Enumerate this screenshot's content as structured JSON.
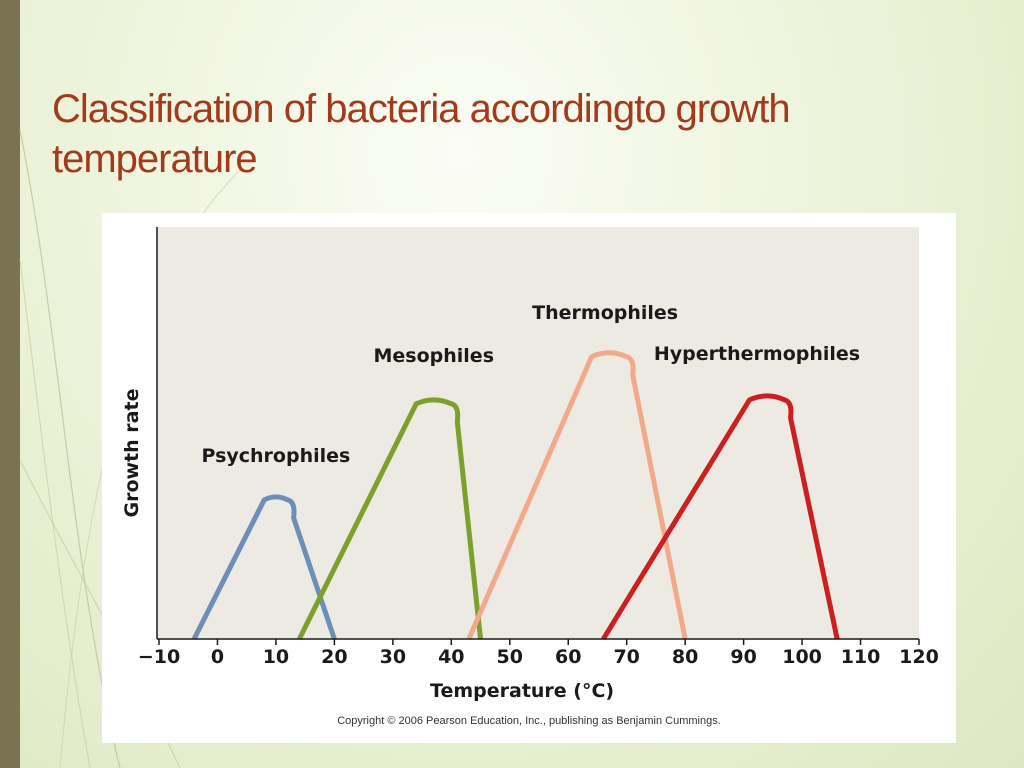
{
  "slide": {
    "title": "Classification of bacteria accordingto  growth temperature"
  },
  "figure": {
    "copyright": "Copyright © 2006 Pearson Education, Inc., publishing as Benjamin Cummings."
  },
  "chart_data": {
    "type": "line",
    "xlabel": "Temperature (°C)",
    "ylabel": "Growth rate",
    "xlim": [
      -10,
      120
    ],
    "x_ticks": [
      -10,
      0,
      10,
      20,
      30,
      40,
      50,
      60,
      70,
      80,
      90,
      100,
      110,
      120
    ],
    "y_ticks_shown": false,
    "grid": false,
    "legend": "none (labels placed above each curve)",
    "colors": {
      "plot_background": "#edeae4",
      "Psychrophiles": "#6b8fb5",
      "Mesophiles": "#7d9f2c",
      "Thermophiles": "#f2a98a",
      "Hyperthermophiles": "#cc1f1f"
    },
    "series": [
      {
        "name": "Psychrophiles",
        "x": [
          -4,
          8,
          10,
          12,
          20
        ],
        "y": [
          0,
          0.355,
          0.36,
          0.355,
          0
        ]
      },
      {
        "name": "Mesophiles",
        "x": [
          14,
          34,
          37,
          40,
          45
        ],
        "y": [
          0,
          0.6,
          0.61,
          0.6,
          0
        ]
      },
      {
        "name": "Thermophiles",
        "x": [
          43,
          64,
          67,
          70,
          80
        ],
        "y": [
          0,
          0.72,
          0.73,
          0.72,
          0
        ]
      },
      {
        "name": "Hyperthermophiles",
        "x": [
          66,
          91,
          94,
          97,
          106
        ],
        "y": [
          0,
          0.61,
          0.62,
          0.61,
          0
        ]
      }
    ]
  }
}
